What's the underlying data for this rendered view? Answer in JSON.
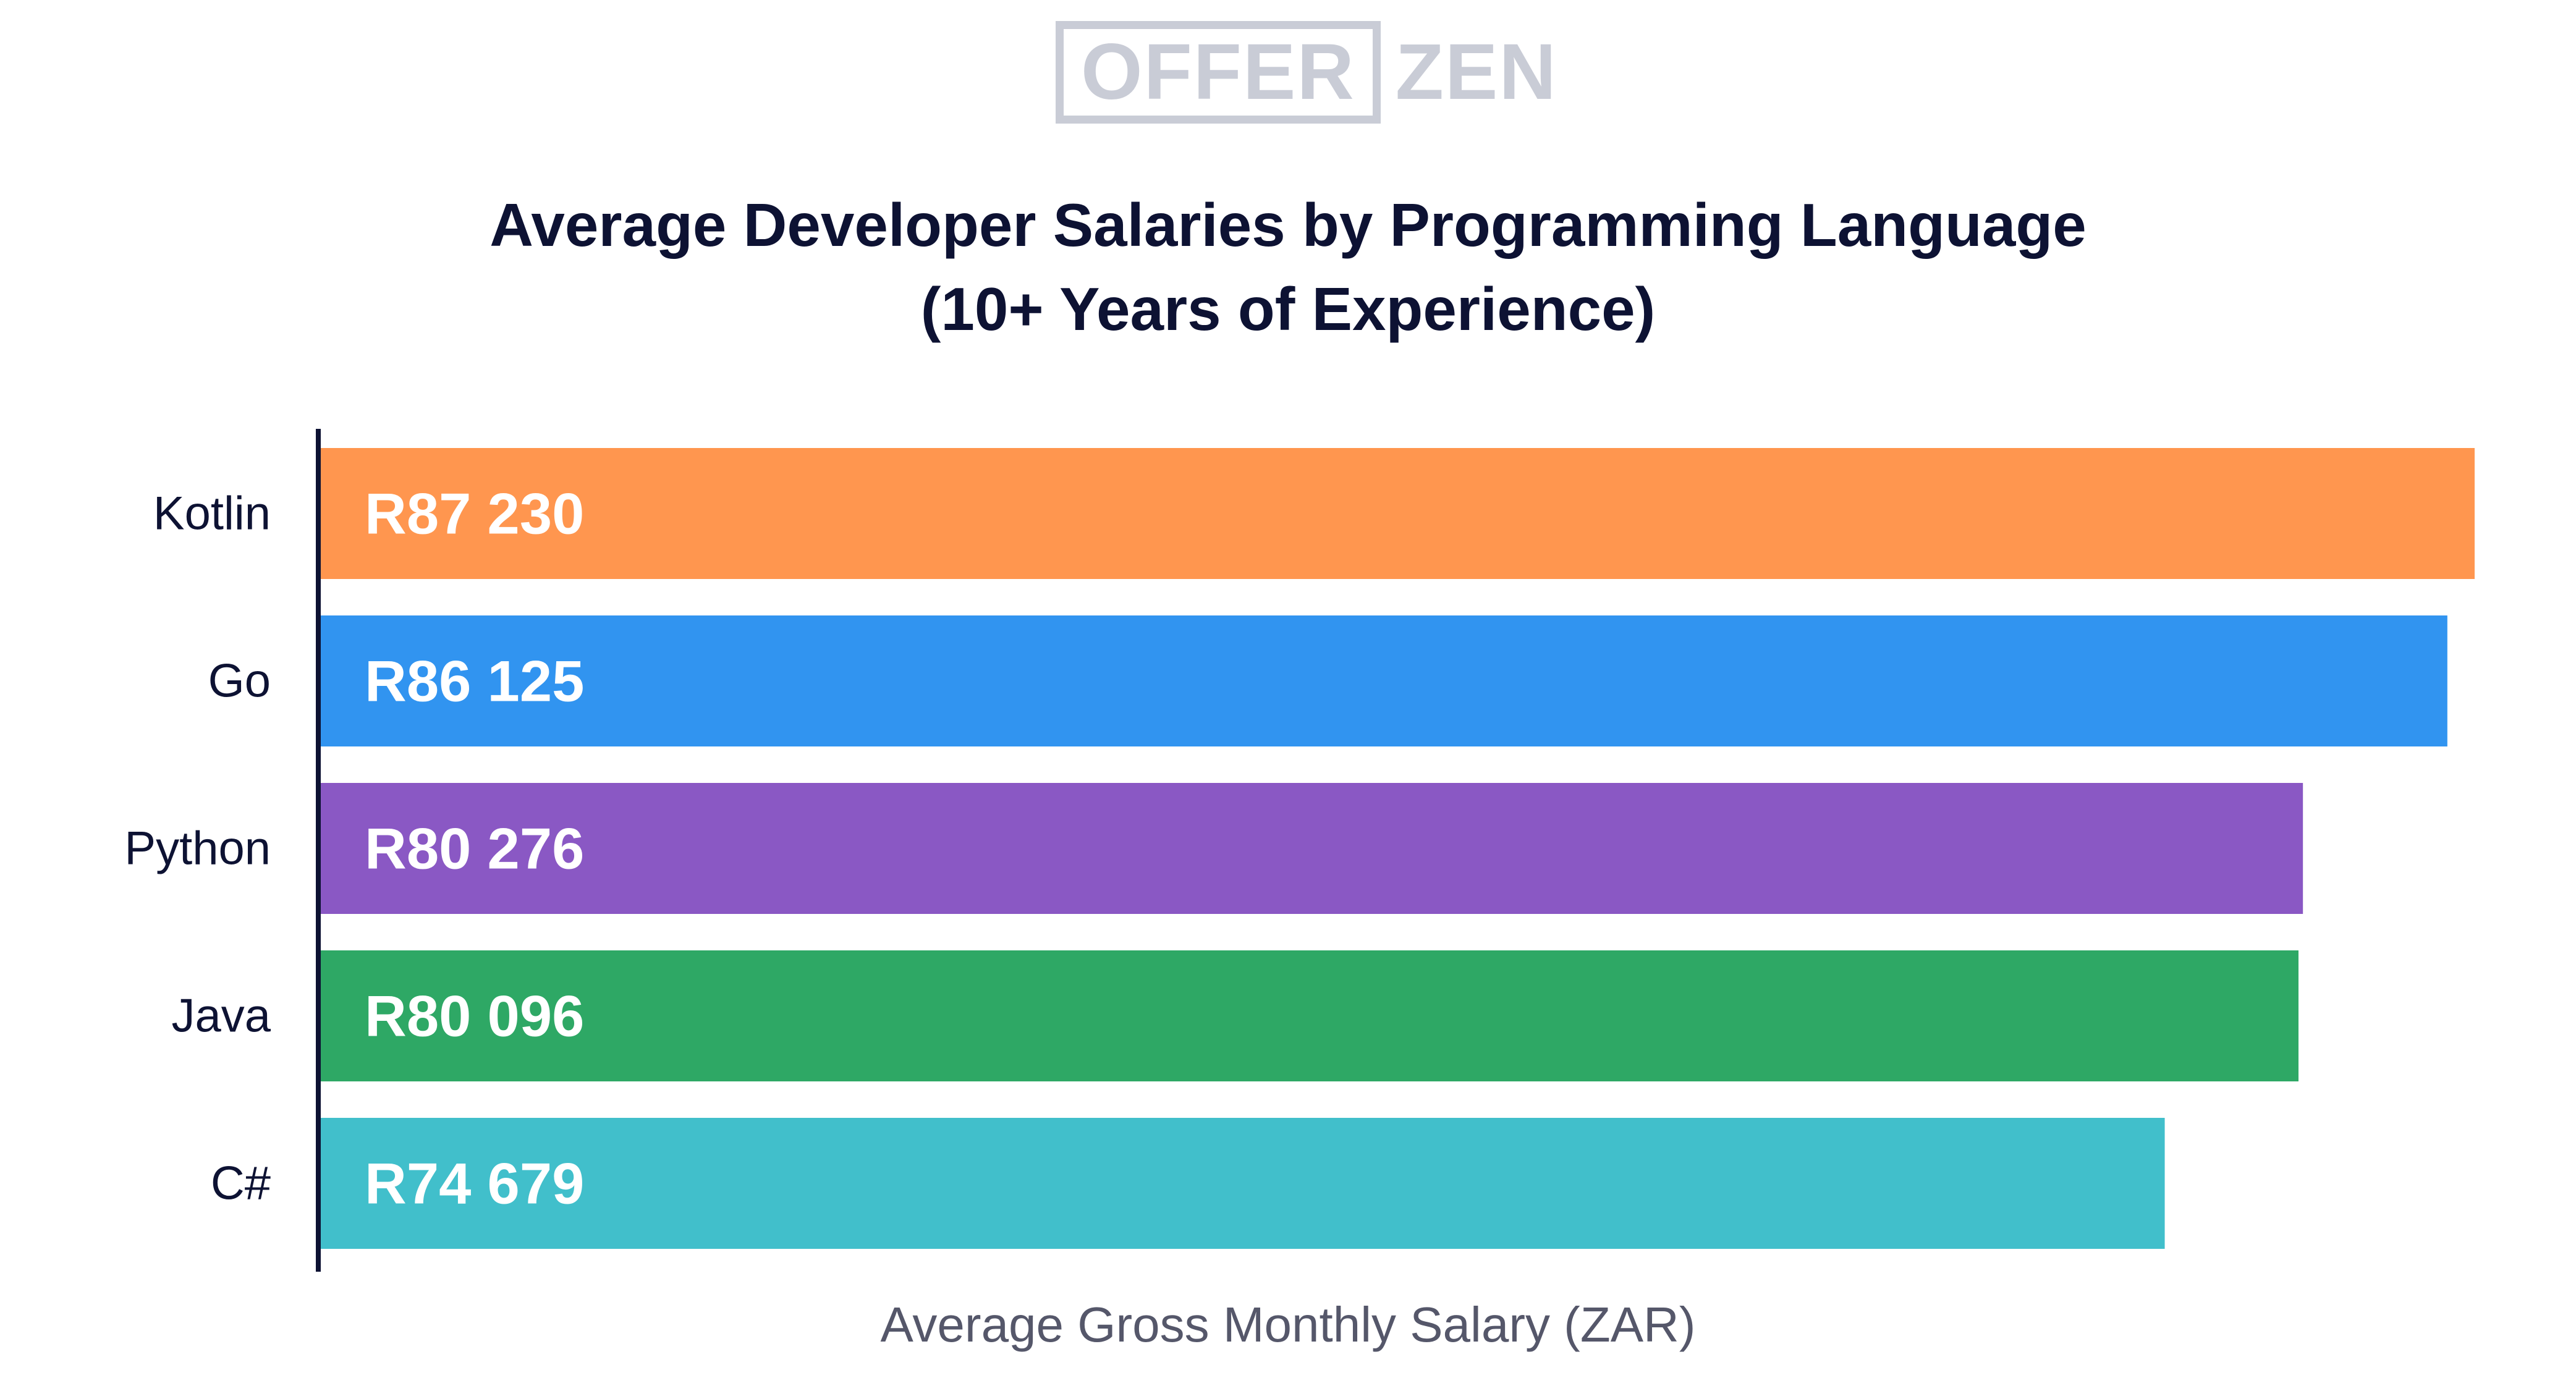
{
  "logo": {
    "left_word": "OFFER",
    "right_word": "ZEN"
  },
  "colors": {
    "text_dark": "#0d1233",
    "axis": "#0d1233",
    "logo": "#c9ccd6",
    "value_label": "#ffffff"
  },
  "chart_data": {
    "type": "bar",
    "orientation": "horizontal",
    "title_lines": [
      "Average Developer Salaries by Programming Language",
      "(10+ Years of Experience)"
    ],
    "xlabel": "Average Gross Monthly Salary (ZAR)",
    "ylabel": "",
    "categories": [
      "Kotlin",
      "Go",
      "Python",
      "Java",
      "C#"
    ],
    "values": [
      87230,
      86125,
      80276,
      80096,
      74679
    ],
    "value_labels": [
      "R87 230",
      "R86 125",
      "R80 276",
      "R80 096",
      "R74 679"
    ],
    "bar_colors": [
      "#ff964f",
      "#3194f0",
      "#8a58c4",
      "#2ea865",
      "#41bfcb"
    ],
    "xlim": [
      0,
      87230
    ],
    "grid": false,
    "legend": "none"
  }
}
